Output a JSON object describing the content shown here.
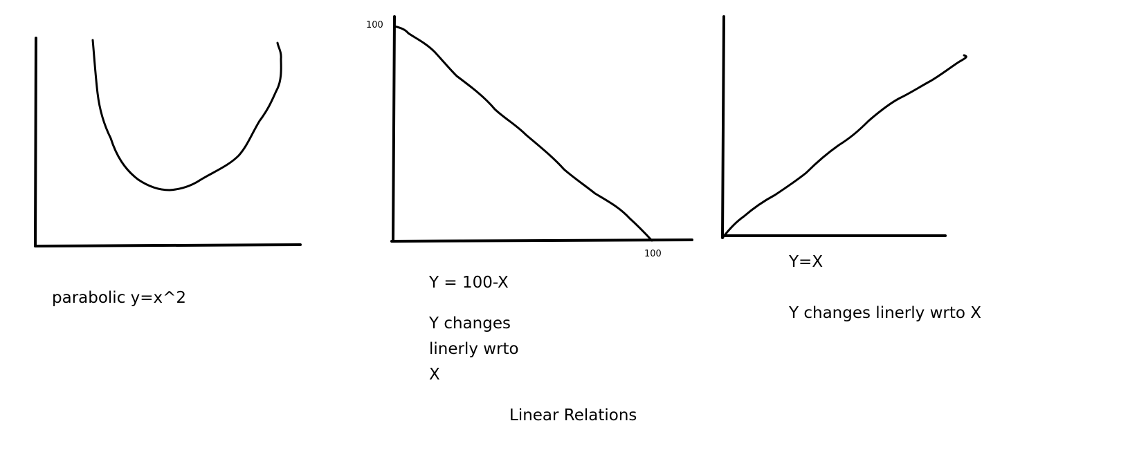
{
  "diagram": {
    "title": "Linear Relations",
    "stroke_color": "#000000",
    "background": "#ffffff",
    "panels": [
      {
        "id": "parabola",
        "curve_type": "parabola",
        "caption": "parabolic y=x^2"
      },
      {
        "id": "decreasing-line",
        "curve_type": "line",
        "equation": "Y = 100-X",
        "description": "Y changes\nlinerly wrto\nX",
        "y_tick": "100",
        "x_tick": "100"
      },
      {
        "id": "increasing-line",
        "curve_type": "line",
        "equation": "Y=X",
        "description": "Y changes linerly wrto X"
      }
    ]
  }
}
